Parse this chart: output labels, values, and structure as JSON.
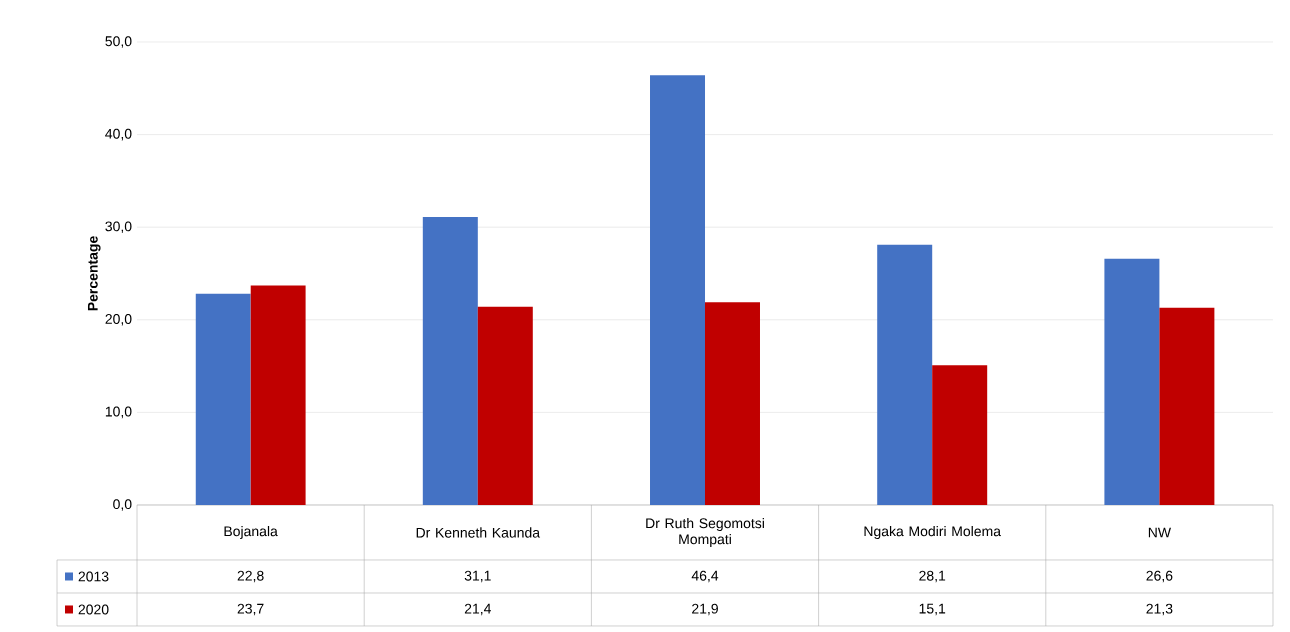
{
  "chart_data": {
    "type": "bar",
    "ylabel": "Percentage",
    "categories": [
      "Bojanala",
      "Dr Kenneth Kaunda",
      "Dr Ruth Segomotsi Mompati",
      "Ngaka Modiri Molema",
      "NW"
    ],
    "series": [
      {
        "name": "2013",
        "color": "#4472c4",
        "values": [
          22.8,
          31.1,
          46.4,
          28.1,
          26.6
        ],
        "value_labels": [
          "22,8",
          "31,1",
          "46,4",
          "28,1",
          "26,6"
        ]
      },
      {
        "name": "2020",
        "color": "#c00000",
        "values": [
          23.7,
          21.4,
          21.9,
          15.1,
          21.3
        ],
        "value_labels": [
          "23,7",
          "21,4",
          "21,9",
          "15,1",
          "21,3"
        ]
      }
    ],
    "ylim": [
      0,
      50
    ],
    "yticks": [
      {
        "value": 0,
        "label": "0,0"
      },
      {
        "value": 10,
        "label": "10,0"
      },
      {
        "value": 20,
        "label": "20,0"
      },
      {
        "value": 30,
        "label": "30,0"
      },
      {
        "value": 40,
        "label": "40,0"
      },
      {
        "value": 50,
        "label": "50,0"
      }
    ],
    "grid": true,
    "legend": "bottom"
  }
}
